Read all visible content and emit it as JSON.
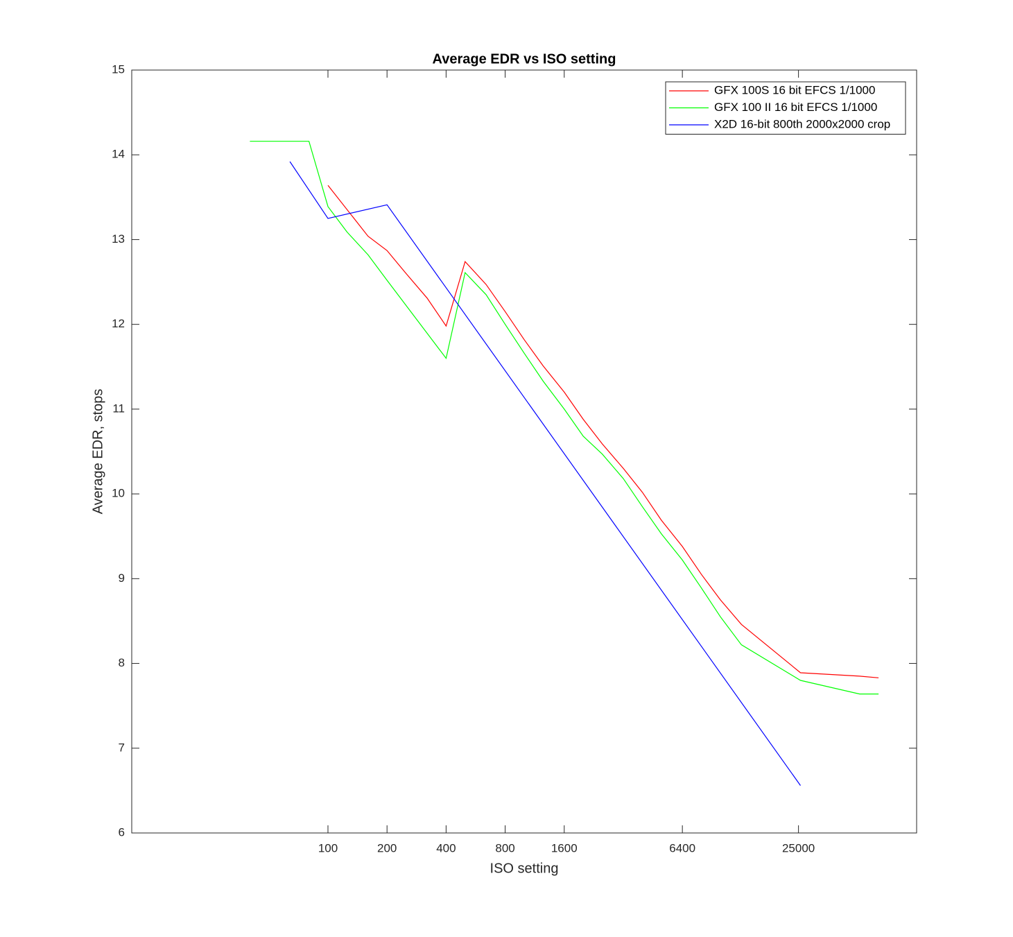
{
  "chart_data": {
    "type": "line",
    "title": "Average EDR vs ISO setting",
    "x_label": "ISO setting",
    "y_label": "Average EDR, stops",
    "x_scale": "log",
    "xlim": [
      10,
      100000
    ],
    "xticks": [
      100,
      200,
      400,
      800,
      1600,
      6400,
      25000
    ],
    "ylim": [
      6,
      15
    ],
    "yticks": [
      6,
      7,
      8,
      9,
      10,
      11,
      12,
      13,
      14,
      15
    ],
    "grid": false,
    "legend_position": "upper right",
    "series": [
      {
        "name": "GFX 100S 16 bit EFCS 1/1000",
        "color": "#ff0000",
        "x": [
          100,
          160,
          200,
          250,
          320,
          400,
          500,
          640,
          800,
          1000,
          1250,
          1600,
          2000,
          2500,
          3200,
          4000,
          5000,
          6400,
          8000,
          10000,
          12800,
          25600,
          51200,
          64000
        ],
        "values": [
          13.64,
          13.04,
          12.87,
          12.6,
          12.31,
          11.98,
          12.74,
          12.47,
          12.15,
          11.82,
          11.51,
          11.2,
          10.88,
          10.59,
          10.3,
          10.02,
          9.69,
          9.38,
          9.05,
          8.75,
          8.46,
          7.89,
          7.85,
          7.83
        ]
      },
      {
        "name": "GFX 100 II 16 bit EFCS 1/1000",
        "color": "#00ff00",
        "x": [
          40,
          80,
          100,
          125,
          160,
          200,
          400,
          500,
          640,
          800,
          1000,
          1250,
          1600,
          2000,
          2500,
          3200,
          4000,
          5000,
          6400,
          8000,
          10000,
          12800,
          25600,
          51200,
          64000
        ],
        "values": [
          14.16,
          14.16,
          13.39,
          13.09,
          12.82,
          12.52,
          11.6,
          12.61,
          12.35,
          12.0,
          11.66,
          11.33,
          11.0,
          10.68,
          10.47,
          10.18,
          9.85,
          9.53,
          9.22,
          8.89,
          8.55,
          8.22,
          7.8,
          7.64,
          7.64
        ]
      },
      {
        "name": "X2D 16-bit 800th 2000x2000 crop",
        "color": "#0000ff",
        "x": [
          64,
          100,
          200,
          25600
        ],
        "values": [
          13.92,
          13.25,
          13.41,
          6.56
        ]
      }
    ]
  }
}
